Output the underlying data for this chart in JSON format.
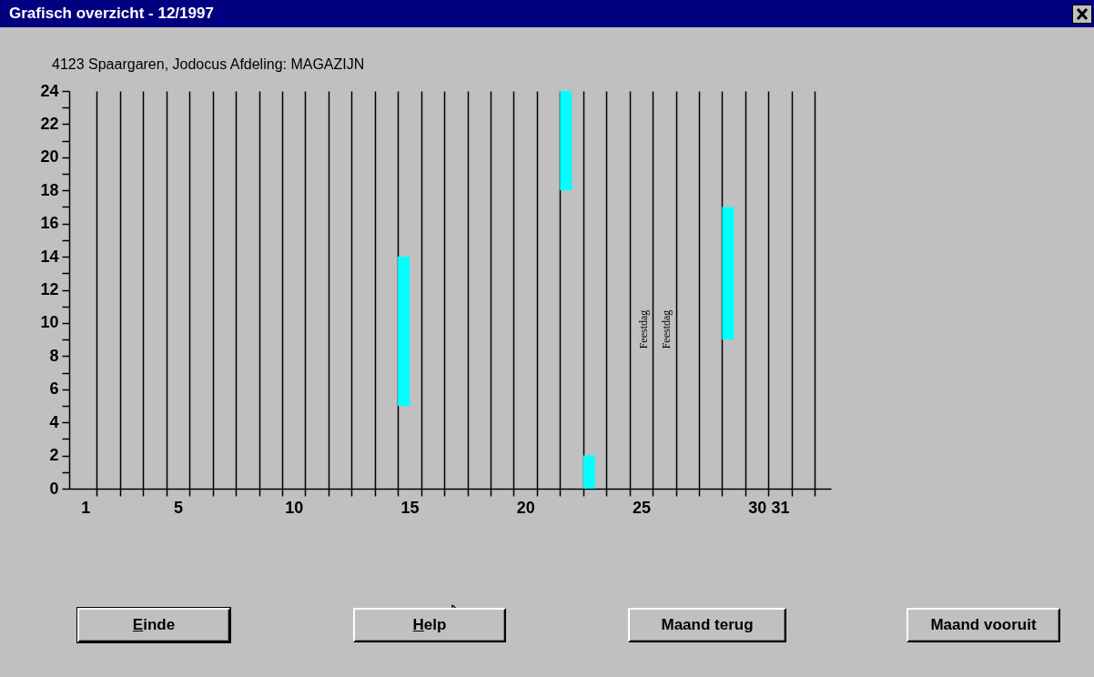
{
  "chart_data": {
    "type": "bar",
    "title": "Grafisch overzicht - 12/1997",
    "subtitle": "4123  Spaargaren, Jodocus   Afdeling:  MAGAZIJN",
    "x": [
      14.75,
      21.75,
      22.75,
      28.75
    ],
    "base": [
      5,
      18,
      0,
      9
    ],
    "values": [
      9,
      6,
      2,
      8
    ],
    "color": "#00ffff",
    "xlim": [
      0.5,
      33
    ],
    "xticks": [
      1,
      5,
      10,
      15,
      20,
      25,
      30,
      31,
      {
        "value": 1.5,
        "label": null
      },
      {
        "value": 2.5,
        "label": null
      },
      {
        "value": 3.5,
        "label": null
      },
      {
        "value": 4.5,
        "label": null
      },
      {
        "value": 5.5,
        "label": null
      },
      {
        "value": 6.5,
        "label": null
      },
      {
        "value": 7.5,
        "label": null
      },
      {
        "value": 8.5,
        "label": null
      },
      {
        "value": 9.5,
        "label": null
      },
      {
        "value": 10.5,
        "label": null
      },
      {
        "value": 11.5,
        "label": null
      },
      {
        "value": 12.5,
        "label": null
      },
      {
        "value": 13.5,
        "label": null
      },
      {
        "value": 14.5,
        "label": null
      },
      {
        "value": 15.5,
        "label": null
      },
      {
        "value": 16.5,
        "label": null
      },
      {
        "value": 17.5,
        "label": null
      },
      {
        "value": 18.5,
        "label": null
      },
      {
        "value": 19.5,
        "label": null
      },
      {
        "value": 20.5,
        "label": null
      },
      {
        "value": 21.5,
        "label": null
      },
      {
        "value": 22.5,
        "label": null
      },
      {
        "value": 23.5,
        "label": null
      },
      {
        "value": 24.5,
        "label": null
      },
      {
        "value": 25.5,
        "label": null
      },
      {
        "value": 26.5,
        "label": null
      },
      {
        "value": 27.5,
        "label": null
      },
      {
        "value": 28.5,
        "label": null
      },
      {
        "value": 29.5,
        "label": null
      },
      {
        "value": 30.5,
        "label": null
      },
      {
        "value": 31.5,
        "label": null
      },
      {
        "value": 32.5,
        "label": null
      }
    ],
    "ylim": [
      0,
      24
    ],
    "yticks": [
      0,
      {
        "value": 1,
        "label": null
      },
      2,
      {
        "value": 3,
        "label": null
      },
      4,
      {
        "value": 5,
        "label": null
      },
      6,
      {
        "value": 7,
        "label": null
      },
      8,
      {
        "value": 9,
        "label": null
      },
      10,
      {
        "value": 11,
        "label": null
      },
      12,
      {
        "value": 13,
        "label": null
      },
      14,
      {
        "value": 15,
        "label": null
      },
      16,
      {
        "value": 17,
        "label": null
      },
      18,
      {
        "value": 19,
        "label": null
      },
      20,
      {
        "value": 21,
        "label": null
      },
      22,
      {
        "value": 23,
        "label": null
      },
      24
    ],
    "grid": "x",
    "annotations": [
      "Feestdag",
      "Feestdag",
      "Einde",
      "Help",
      "Maand terug",
      "Maand vooruit"
    ]
  }
}
